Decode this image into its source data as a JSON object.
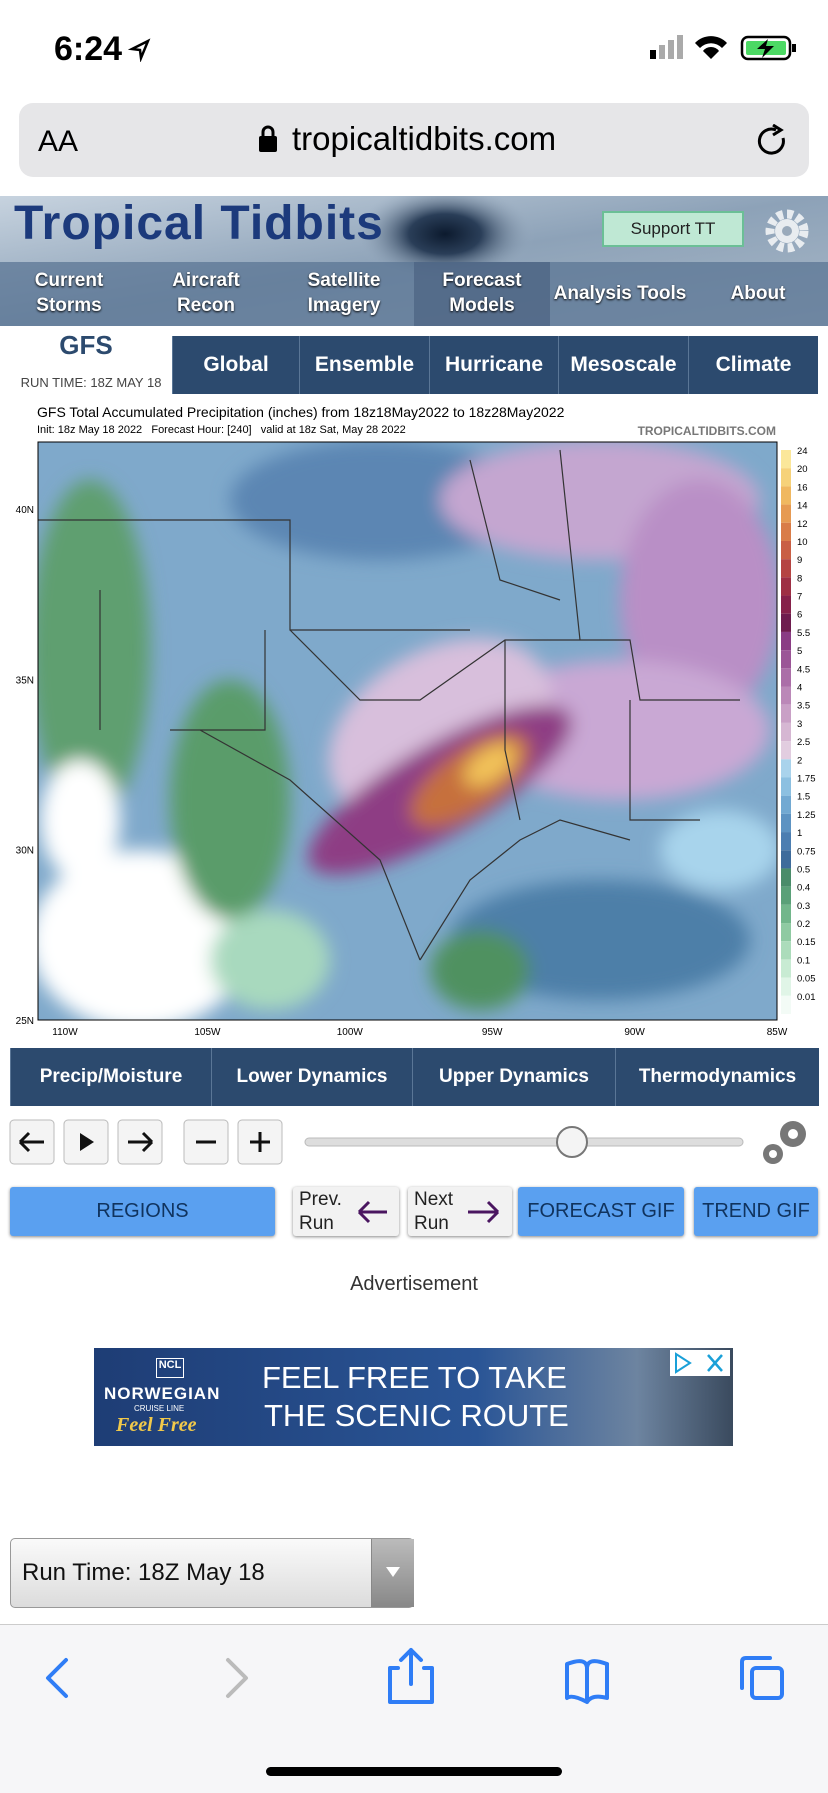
{
  "status_bar": {
    "time": "6:24"
  },
  "browser": {
    "text_size": "AA",
    "url": "tropicaltidbits.com"
  },
  "header": {
    "logo": "Tropical Tidbits",
    "support": "Support TT",
    "nav": [
      "Current Storms",
      "Aircraft Recon",
      "Satellite Imagery",
      "Forecast Models",
      "Analysis Tools",
      "About"
    ]
  },
  "model": {
    "name": "GFS",
    "run_time": "RUN TIME: 18Z MAY 18",
    "tabs": [
      "Global",
      "Ensemble",
      "Hurricane",
      "Mesoscale",
      "Climate"
    ]
  },
  "map": {
    "title": "GFS Total Accumulated Precipitation (inches) from 18z18May2022 to 18z28May2022",
    "init": "Init: 18z May 18 2022   Forecast Hour: [240]   valid at 18z Sat, May 28 2022",
    "source": "TROPICALTIDBITS.COM",
    "lat_labels": [
      "40N",
      "35N",
      "30N",
      "25N"
    ],
    "lon_labels": [
      "110W",
      "105W",
      "100W",
      "95W",
      "90W",
      "85W"
    ],
    "colorbar_labels": [
      "24",
      "20",
      "16",
      "14",
      "12",
      "10",
      "9",
      "8",
      "7",
      "6",
      "5.5",
      "5",
      "4.5",
      "4",
      "3.5",
      "3",
      "2.5",
      "2",
      "1.75",
      "1.5",
      "1.25",
      "1",
      "0.75",
      "0.5",
      "0.4",
      "0.3",
      "0.2",
      "0.15",
      "0.1",
      "0.05",
      "0.01"
    ]
  },
  "categories": [
    "Precip/Moisture",
    "Lower Dynamics",
    "Upper Dynamics",
    "Thermodynamics"
  ],
  "buttons": {
    "regions": "REGIONS",
    "prev_run": "Prev. Run",
    "next_run": "Next Run",
    "forecast_gif": "FORECAST GIF",
    "trend_gif": "TREND GIF"
  },
  "ad": {
    "label": "Advertisement",
    "logo": "NCL",
    "brand": "NORWEGIAN",
    "brand_sub": "CRUISE LINE",
    "tagline": "Feel Free",
    "headline_1": "FEEL FREE TO TAKE",
    "headline_2": "THE SCENIC ROUTE"
  },
  "run_select": "Run Time: 18Z May 18"
}
